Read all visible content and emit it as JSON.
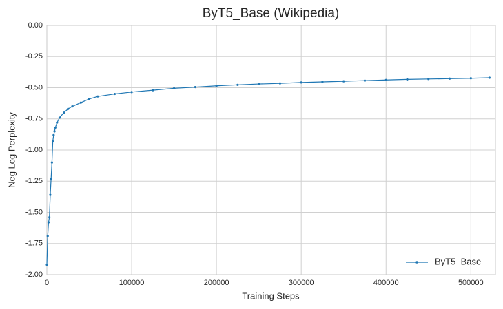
{
  "chart_data": {
    "type": "line",
    "title": "ByT5_Base (Wikipedia)",
    "x_label": "Training Steps",
    "y_label": "Neg Log Perplexity",
    "x": [
      0,
      1000,
      2000,
      3000,
      4000,
      5000,
      6000,
      7000,
      8000,
      9000,
      10000,
      12000,
      15000,
      20000,
      25000,
      30000,
      40000,
      50000,
      60000,
      80000,
      100000,
      125000,
      150000,
      175000,
      200000,
      225000,
      250000,
      275000,
      300000,
      325000,
      350000,
      375000,
      400000,
      425000,
      450000,
      475000,
      500000,
      522000
    ],
    "series": [
      {
        "name": "ByT5_Base",
        "color": "#1f77b4",
        "values": [
          -1.92,
          -1.69,
          -1.58,
          -1.54,
          -1.36,
          -1.23,
          -1.1,
          -0.93,
          -0.88,
          -0.85,
          -0.82,
          -0.78,
          -0.74,
          -0.7,
          -0.67,
          -0.65,
          -0.62,
          -0.59,
          -0.57,
          -0.55,
          -0.535,
          -0.52,
          -0.505,
          -0.495,
          -0.485,
          -0.477,
          -0.47,
          -0.465,
          -0.458,
          -0.453,
          -0.448,
          -0.443,
          -0.438,
          -0.433,
          -0.43,
          -0.427,
          -0.424,
          -0.42
        ]
      }
    ],
    "xlim": [
      0,
      529000
    ],
    "ylim": [
      -2,
      0
    ],
    "xticks": [
      0,
      100000,
      200000,
      300000,
      400000,
      500000
    ],
    "yticks": [
      {
        "value": -2,
        "label": "-2.00"
      },
      {
        "value": -1.75,
        "label": "-1.75"
      },
      {
        "value": -1.5,
        "label": "-1.50"
      },
      {
        "value": -1.25,
        "label": "-1.25"
      },
      {
        "value": -1,
        "label": "-1.00"
      },
      {
        "value": -0.75,
        "label": "-0.75"
      },
      {
        "value": -0.5,
        "label": "-0.50"
      },
      {
        "value": -0.25,
        "label": "-0.25"
      },
      {
        "value": 0,
        "label": "0.00"
      }
    ],
    "grid": true,
    "legend": "lower right"
  }
}
